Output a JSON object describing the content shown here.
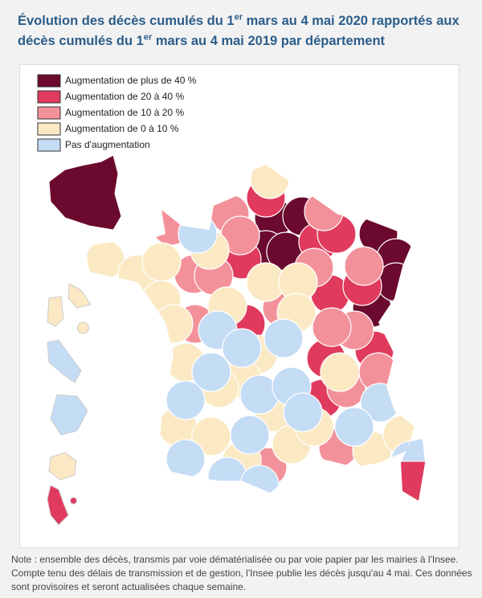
{
  "header": {
    "title": [
      "Évolution des décès cumulés du 1",
      "er",
      " mars au 4 mai 2020 rapportés aux décès cumulés du 1",
      "er",
      " mars au 4 mai 2019 par département"
    ]
  },
  "legend": {
    "items": [
      {
        "label": "Augmentation de plus de 40 %",
        "color": "#6b0a2e"
      },
      {
        "label": "Augmentation de 20 à 40 %",
        "color": "#e03a5e"
      },
      {
        "label": "Augmentation de 10 à 20 %",
        "color": "#f3919a"
      },
      {
        "label": "Augmentation de 0 à 10 %",
        "color": "#fbe9c4"
      },
      {
        "label": "Pas d'augmentation",
        "color": "#c5dcf5"
      }
    ]
  },
  "note": "Note : ensemble des décès, transmis par voie dématérialisée ou par voie papier par les mairies à l'Insee. Compte tenu des délais de transmission et de gestion, l'Insee publie les décès jusqu'au 4 mai. Ces données sont provisoires et seront actualisées chaque semaine."
}
